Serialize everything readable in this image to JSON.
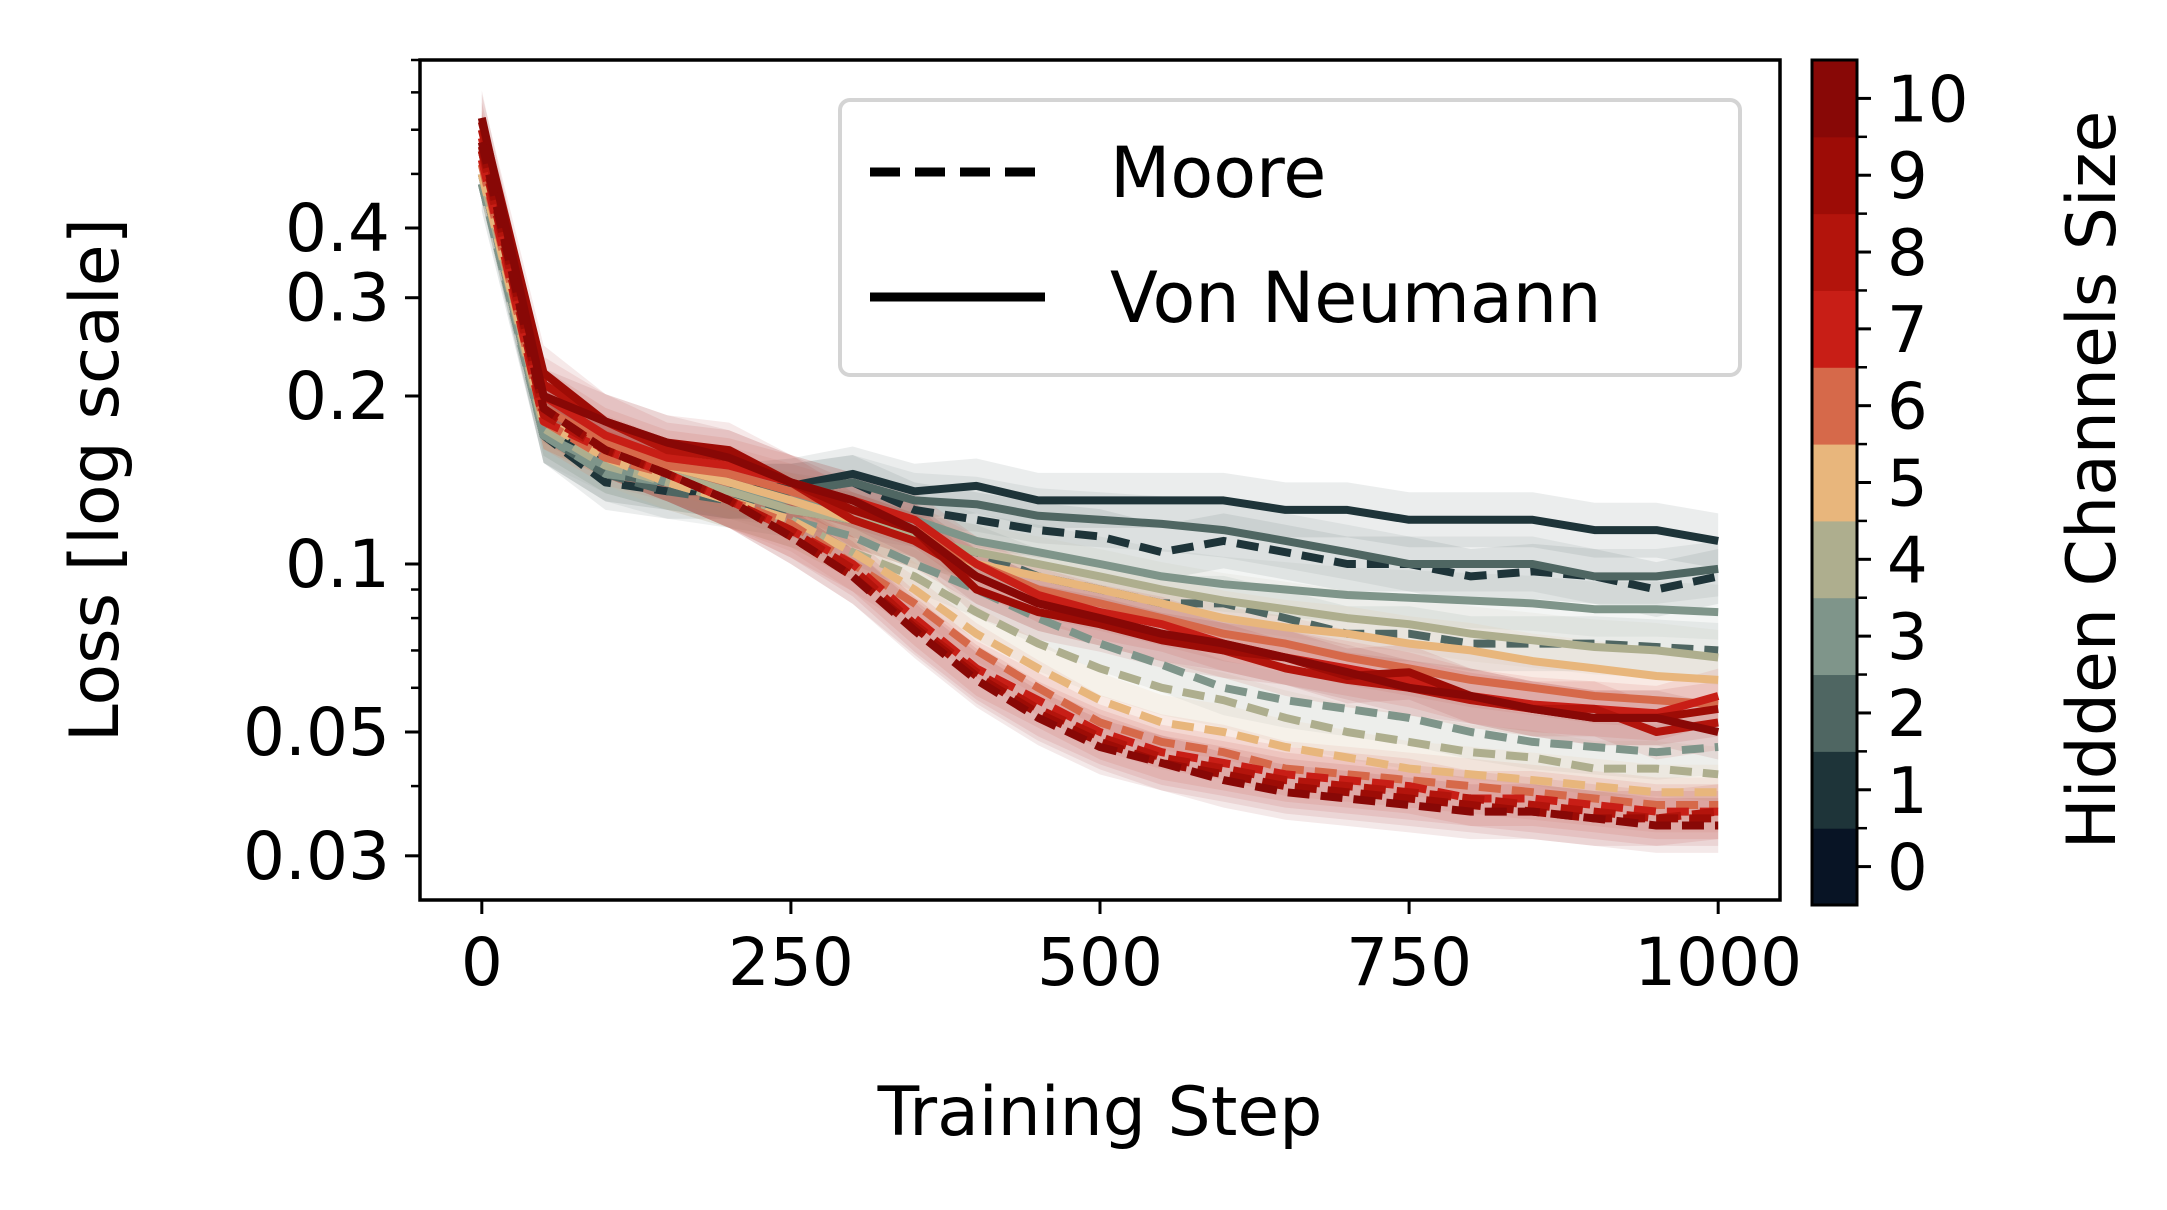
{
  "chart_data": {
    "type": "line",
    "xlabel": "Training Step",
    "ylabel": "Loss [log scale]",
    "yscale": "log",
    "xlim": [
      -50,
      1050
    ],
    "ylim": [
      0.025,
      0.8
    ],
    "xticks": [
      0,
      250,
      500,
      750,
      1000
    ],
    "xtick_labels": [
      "0",
      "250",
      "500",
      "750",
      "1000"
    ],
    "yticks": [
      0.03,
      0.05,
      0.1,
      0.2,
      0.3,
      0.4
    ],
    "ytick_labels": [
      "0.03",
      "0.05",
      "0.1",
      "0.2",
      "0.3",
      "0.4"
    ],
    "x": [
      0,
      50,
      100,
      150,
      200,
      250,
      300,
      350,
      400,
      450,
      500,
      550,
      600,
      650,
      700,
      750,
      800,
      850,
      900,
      950,
      1000
    ],
    "legend": {
      "placement": "top-right",
      "entries": [
        {
          "label": "Moore",
          "style": "dashed"
        },
        {
          "label": "Von Neumann",
          "style": "solid"
        }
      ]
    },
    "colorbar": {
      "label": "Hidden Channels Size",
      "ticks": [
        "0",
        "1",
        "2",
        "3",
        "4",
        "5",
        "6",
        "7",
        "8",
        "9",
        "10"
      ],
      "colors": [
        "#081425",
        "#1e3439",
        "#4f6662",
        "#7f958a",
        "#aeae8e",
        "#e8b67c",
        "#d6694a",
        "#c81e16",
        "#b3140c",
        "#9d0c06",
        "#880806"
      ]
    },
    "series": [
      {
        "size": 1,
        "neighborhood": "Von Neumann",
        "color": "#1e3439",
        "values": [
          0.55,
          0.175,
          0.15,
          0.14,
          0.135,
          0.138,
          0.145,
          0.135,
          0.138,
          0.13,
          0.13,
          0.13,
          0.13,
          0.125,
          0.125,
          0.12,
          0.12,
          0.12,
          0.115,
          0.115,
          0.11
        ]
      },
      {
        "size": 2,
        "neighborhood": "Von Neumann",
        "color": "#4f6662",
        "values": [
          0.5,
          0.17,
          0.145,
          0.14,
          0.135,
          0.135,
          0.14,
          0.13,
          0.128,
          0.122,
          0.12,
          0.118,
          0.115,
          0.11,
          0.105,
          0.1,
          0.1,
          0.1,
          0.095,
          0.095,
          0.098
        ]
      },
      {
        "size": 3,
        "neighborhood": "Von Neumann",
        "color": "#7f958a",
        "values": [
          0.5,
          0.17,
          0.15,
          0.14,
          0.135,
          0.13,
          0.125,
          0.12,
          0.11,
          0.105,
          0.1,
          0.095,
          0.092,
          0.09,
          0.088,
          0.087,
          0.086,
          0.085,
          0.083,
          0.083,
          0.082
        ]
      },
      {
        "size": 4,
        "neighborhood": "Von Neumann",
        "color": "#aeae8e",
        "values": [
          0.5,
          0.18,
          0.16,
          0.145,
          0.135,
          0.125,
          0.12,
          0.112,
          0.105,
          0.1,
          0.095,
          0.09,
          0.086,
          0.083,
          0.08,
          0.078,
          0.075,
          0.073,
          0.071,
          0.07,
          0.068
        ]
      },
      {
        "size": 5,
        "neighborhood": "Von Neumann",
        "color": "#e8b67c",
        "values": [
          0.52,
          0.18,
          0.16,
          0.15,
          0.14,
          0.13,
          0.12,
          0.11,
          0.1,
          0.095,
          0.09,
          0.085,
          0.08,
          0.077,
          0.075,
          0.072,
          0.07,
          0.067,
          0.065,
          0.063,
          0.062
        ]
      },
      {
        "size": 6,
        "neighborhood": "Von Neumann",
        "color": "#d6694a",
        "values": [
          0.55,
          0.19,
          0.165,
          0.15,
          0.145,
          0.135,
          0.125,
          0.115,
          0.1,
          0.09,
          0.085,
          0.08,
          0.075,
          0.072,
          0.068,
          0.065,
          0.062,
          0.06,
          0.058,
          0.057,
          0.056
        ]
      },
      {
        "size": 7,
        "neighborhood": "Von Neumann",
        "color": "#c81e16",
        "values": [
          0.58,
          0.2,
          0.17,
          0.155,
          0.15,
          0.14,
          0.13,
          0.12,
          0.1,
          0.088,
          0.082,
          0.078,
          0.072,
          0.068,
          0.065,
          0.062,
          0.058,
          0.056,
          0.055,
          0.054,
          0.058
        ]
      },
      {
        "size": 8,
        "neighborhood": "Von Neumann",
        "color": "#b3140c",
        "values": [
          0.6,
          0.21,
          0.18,
          0.16,
          0.155,
          0.14,
          0.12,
          0.11,
          0.095,
          0.085,
          0.08,
          0.075,
          0.07,
          0.065,
          0.062,
          0.06,
          0.057,
          0.055,
          0.055,
          0.05,
          0.052
        ]
      },
      {
        "size": 9,
        "neighborhood": "Von Neumann",
        "color": "#9d0c06",
        "values": [
          0.62,
          0.22,
          0.18,
          0.165,
          0.16,
          0.14,
          0.125,
          0.115,
          0.09,
          0.082,
          0.078,
          0.073,
          0.07,
          0.068,
          0.063,
          0.064,
          0.058,
          0.055,
          0.053,
          0.053,
          0.055
        ]
      },
      {
        "size": 10,
        "neighborhood": "Von Neumann",
        "color": "#880806",
        "values": [
          0.63,
          0.2,
          0.18,
          0.165,
          0.155,
          0.14,
          0.13,
          0.115,
          0.095,
          0.085,
          0.08,
          0.075,
          0.072,
          0.068,
          0.064,
          0.06,
          0.058,
          0.055,
          0.053,
          0.053,
          0.05
        ]
      },
      {
        "size": 1,
        "neighborhood": "Moore",
        "color": "#1e3439",
        "values": [
          0.5,
          0.17,
          0.14,
          0.135,
          0.135,
          0.135,
          0.14,
          0.125,
          0.12,
          0.115,
          0.112,
          0.105,
          0.11,
          0.105,
          0.1,
          0.1,
          0.095,
          0.097,
          0.095,
          0.09,
          0.095
        ]
      },
      {
        "size": 2,
        "neighborhood": "Moore",
        "color": "#4f6662",
        "values": [
          0.48,
          0.17,
          0.145,
          0.135,
          0.13,
          0.125,
          0.12,
          0.11,
          0.105,
          0.095,
          0.09,
          0.085,
          0.085,
          0.08,
          0.075,
          0.075,
          0.072,
          0.072,
          0.072,
          0.071,
          0.07
        ]
      },
      {
        "size": 3,
        "neighborhood": "Moore",
        "color": "#7f958a",
        "values": [
          0.48,
          0.17,
          0.145,
          0.14,
          0.13,
          0.12,
          0.112,
          0.1,
          0.09,
          0.08,
          0.072,
          0.066,
          0.06,
          0.057,
          0.055,
          0.053,
          0.05,
          0.048,
          0.047,
          0.046,
          0.047
        ]
      },
      {
        "size": 4,
        "neighborhood": "Moore",
        "color": "#aeae8e",
        "values": [
          0.5,
          0.175,
          0.15,
          0.14,
          0.13,
          0.12,
          0.105,
          0.095,
          0.082,
          0.072,
          0.065,
          0.06,
          0.057,
          0.053,
          0.05,
          0.048,
          0.046,
          0.045,
          0.043,
          0.043,
          0.042
        ]
      },
      {
        "size": 5,
        "neighborhood": "Moore",
        "color": "#e8b67c",
        "values": [
          0.5,
          0.18,
          0.155,
          0.14,
          0.13,
          0.12,
          0.105,
          0.09,
          0.075,
          0.065,
          0.057,
          0.052,
          0.05,
          0.047,
          0.045,
          0.043,
          0.042,
          0.041,
          0.04,
          0.039,
          0.039
        ]
      },
      {
        "size": 6,
        "neighborhood": "Moore",
        "color": "#d6694a",
        "values": [
          0.52,
          0.18,
          0.155,
          0.145,
          0.13,
          0.118,
          0.1,
          0.085,
          0.07,
          0.06,
          0.052,
          0.048,
          0.046,
          0.043,
          0.042,
          0.041,
          0.04,
          0.039,
          0.038,
          0.037,
          0.037
        ]
      },
      {
        "size": 7,
        "neighborhood": "Moore",
        "color": "#c81e16",
        "values": [
          0.53,
          0.18,
          0.16,
          0.145,
          0.13,
          0.115,
          0.1,
          0.08,
          0.065,
          0.057,
          0.05,
          0.046,
          0.044,
          0.042,
          0.041,
          0.04,
          0.038,
          0.038,
          0.037,
          0.036,
          0.036
        ]
      },
      {
        "size": 8,
        "neighborhood": "Moore",
        "color": "#b3140c",
        "values": [
          0.55,
          0.185,
          0.16,
          0.145,
          0.13,
          0.115,
          0.098,
          0.078,
          0.064,
          0.055,
          0.049,
          0.045,
          0.043,
          0.041,
          0.04,
          0.039,
          0.038,
          0.037,
          0.036,
          0.035,
          0.036
        ]
      },
      {
        "size": 9,
        "neighborhood": "Moore",
        "color": "#9d0c06",
        "values": [
          0.56,
          0.19,
          0.16,
          0.145,
          0.13,
          0.112,
          0.095,
          0.077,
          0.063,
          0.054,
          0.048,
          0.044,
          0.042,
          0.04,
          0.039,
          0.038,
          0.037,
          0.036,
          0.035,
          0.035,
          0.035
        ]
      },
      {
        "size": 10,
        "neighborhood": "Moore",
        "color": "#880806",
        "values": [
          0.57,
          0.19,
          0.16,
          0.145,
          0.13,
          0.112,
          0.095,
          0.076,
          0.062,
          0.053,
          0.047,
          0.044,
          0.041,
          0.039,
          0.038,
          0.037,
          0.036,
          0.036,
          0.035,
          0.034,
          0.034
        ]
      }
    ]
  }
}
